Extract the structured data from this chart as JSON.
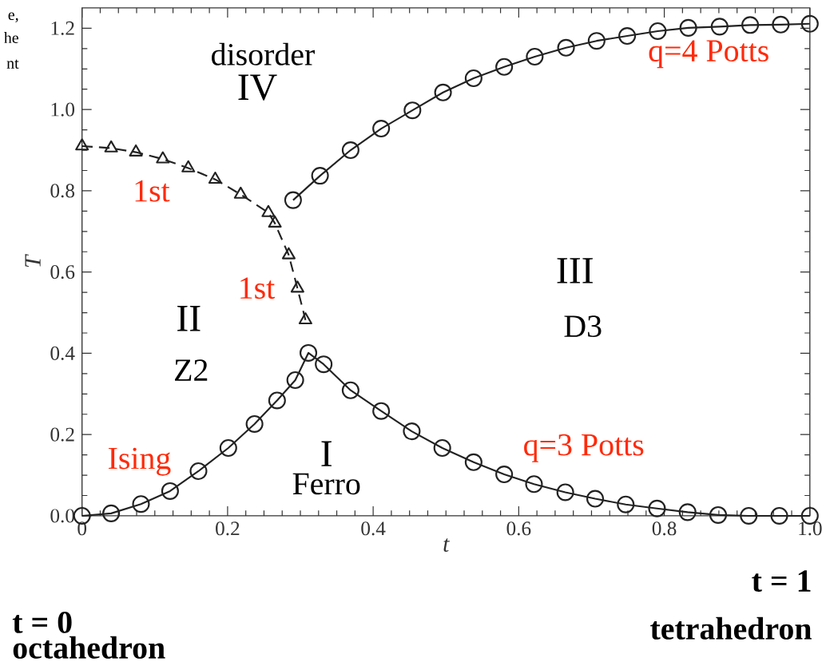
{
  "chart_data": {
    "type": "line",
    "xlabel": "t",
    "ylabel": "T",
    "xlim": [
      0,
      1
    ],
    "ylim": [
      0,
      1.25
    ],
    "xticks": [
      0,
      0.2,
      0.4,
      0.6,
      0.8,
      {
        "value": 1,
        "label": "1.0"
      }
    ],
    "yticks": [
      {
        "value": 0,
        "label": "0.0"
      },
      0.2,
      0.4,
      0.6,
      0.8,
      {
        "value": 1,
        "label": "1.0"
      },
      1.2
    ],
    "series": [
      {
        "color": "#222222",
        "marker": "triangle",
        "line_style": "dashed",
        "x": [
          0.0,
          0.04,
          0.074,
          0.111,
          0.146,
          0.183,
          0.218,
          0.256,
          0.265,
          0.284,
          0.296,
          0.307
        ],
        "values": [
          0.91,
          0.905,
          0.895,
          0.878,
          0.856,
          0.828,
          0.791,
          0.746,
          0.72,
          0.642,
          0.56,
          0.482
        ]
      },
      {
        "color": "#222222",
        "marker": "circle",
        "line_style": "solid",
        "x": [
          0.0,
          0.04,
          0.081,
          0.121,
          0.16,
          0.201,
          0.237,
          0.268,
          0.293,
          0.311,
          0.332,
          0.369,
          0.411,
          0.453,
          0.495,
          0.538,
          0.58,
          0.621,
          0.664,
          0.705,
          0.747,
          0.79,
          0.832,
          0.874,
          0.916,
          0.958,
          1.0
        ],
        "values": [
          0.0,
          0.006,
          0.029,
          0.061,
          0.11,
          0.167,
          0.226,
          0.284,
          0.334,
          0.401,
          0.373,
          0.309,
          0.258,
          0.208,
          0.167,
          0.132,
          0.102,
          0.078,
          0.058,
          0.042,
          0.028,
          0.018,
          0.009,
          0.002,
          0.0,
          0.0,
          0.0
        ]
      },
      {
        "color": "#222222",
        "marker": "circle",
        "line_style": "solid",
        "x": [
          0.29,
          0.327,
          0.369,
          0.411,
          0.454,
          0.496,
          0.538,
          0.58,
          0.622,
          0.665,
          0.707,
          0.749,
          0.791,
          0.833,
          0.876,
          0.918,
          0.96,
          1.0
        ],
        "values": [
          0.777,
          0.837,
          0.9,
          0.953,
          0.998,
          1.042,
          1.077,
          1.105,
          1.13,
          1.152,
          1.169,
          1.181,
          1.193,
          1.201,
          1.204,
          1.208,
          1.209,
          1.211
        ]
      }
    ],
    "annotations": [
      "disorder",
      "IV",
      "1st",
      "1st",
      "II",
      "Z2",
      "Ising",
      "I",
      "Ferro",
      "III",
      "D3",
      "q=3 Potts",
      "q=4 Potts",
      "t = 0",
      "octahedron",
      "t = 1",
      "tetrahedron",
      "e,",
      "he",
      "nt"
    ]
  }
}
